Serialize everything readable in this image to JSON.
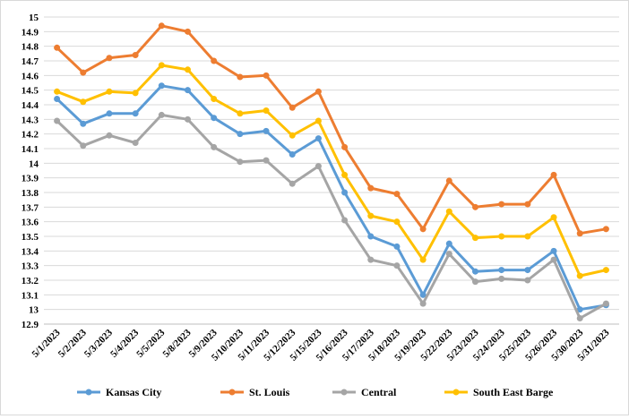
{
  "chart_data": {
    "type": "line",
    "title": "",
    "xlabel": "",
    "ylabel": "",
    "ylim": [
      12.9,
      15
    ],
    "ystep": 0.1,
    "grid": true,
    "legend_position": "bottom",
    "categories": [
      "5/1/2023",
      "5/2/2023",
      "5/3/2023",
      "5/4/2023",
      "5/5/2023",
      "5/8/2023",
      "5/9/2023",
      "5/10/2023",
      "5/11/2023",
      "5/12/2023",
      "5/15/2023",
      "5/16/2023",
      "5/17/2023",
      "5/18/2023",
      "5/19/2023",
      "5/22/2023",
      "5/23/2023",
      "5/24/2023",
      "5/25/2023",
      "5/26/2023",
      "5/30/2023",
      "5/31/2023"
    ],
    "y_tick_labels": [
      "12.9",
      "13",
      "13.1",
      "13.2",
      "13.3",
      "13.4",
      "13.5",
      "13.6",
      "13.7",
      "13.8",
      "13.9",
      "14",
      "14.1",
      "14.2",
      "14.3",
      "14.4",
      "14.5",
      "14.6",
      "14.7",
      "14.8",
      "14.9",
      "15"
    ],
    "series": [
      {
        "name": "Kansas City",
        "color": "#5b9bd5",
        "values": [
          14.44,
          14.27,
          14.34,
          14.34,
          14.53,
          14.5,
          14.31,
          14.2,
          14.22,
          14.06,
          14.17,
          13.8,
          13.5,
          13.43,
          13.1,
          13.45,
          13.26,
          13.27,
          13.27,
          13.4,
          13.0,
          13.03
        ]
      },
      {
        "name": "St. Louis",
        "color": "#ed7d31",
        "values": [
          14.79,
          14.62,
          14.72,
          14.74,
          14.94,
          14.9,
          14.7,
          14.59,
          14.6,
          14.38,
          14.49,
          14.11,
          13.83,
          13.79,
          13.55,
          13.88,
          13.7,
          13.72,
          13.72,
          13.92,
          13.52,
          13.55
        ]
      },
      {
        "name": "Central",
        "color": "#a5a5a5",
        "values": [
          14.29,
          14.12,
          14.19,
          14.14,
          14.33,
          14.3,
          14.11,
          14.01,
          14.02,
          13.86,
          13.98,
          13.61,
          13.34,
          13.3,
          13.04,
          13.38,
          13.19,
          13.21,
          13.2,
          13.34,
          12.94,
          13.04
        ]
      },
      {
        "name": "South East Barge",
        "color": "#ffc000",
        "values": [
          14.49,
          14.42,
          14.49,
          14.48,
          14.67,
          14.64,
          14.44,
          14.34,
          14.36,
          14.19,
          14.29,
          13.92,
          13.64,
          13.6,
          13.34,
          13.67,
          13.49,
          13.5,
          13.5,
          13.63,
          13.23,
          13.27
        ]
      }
    ]
  }
}
